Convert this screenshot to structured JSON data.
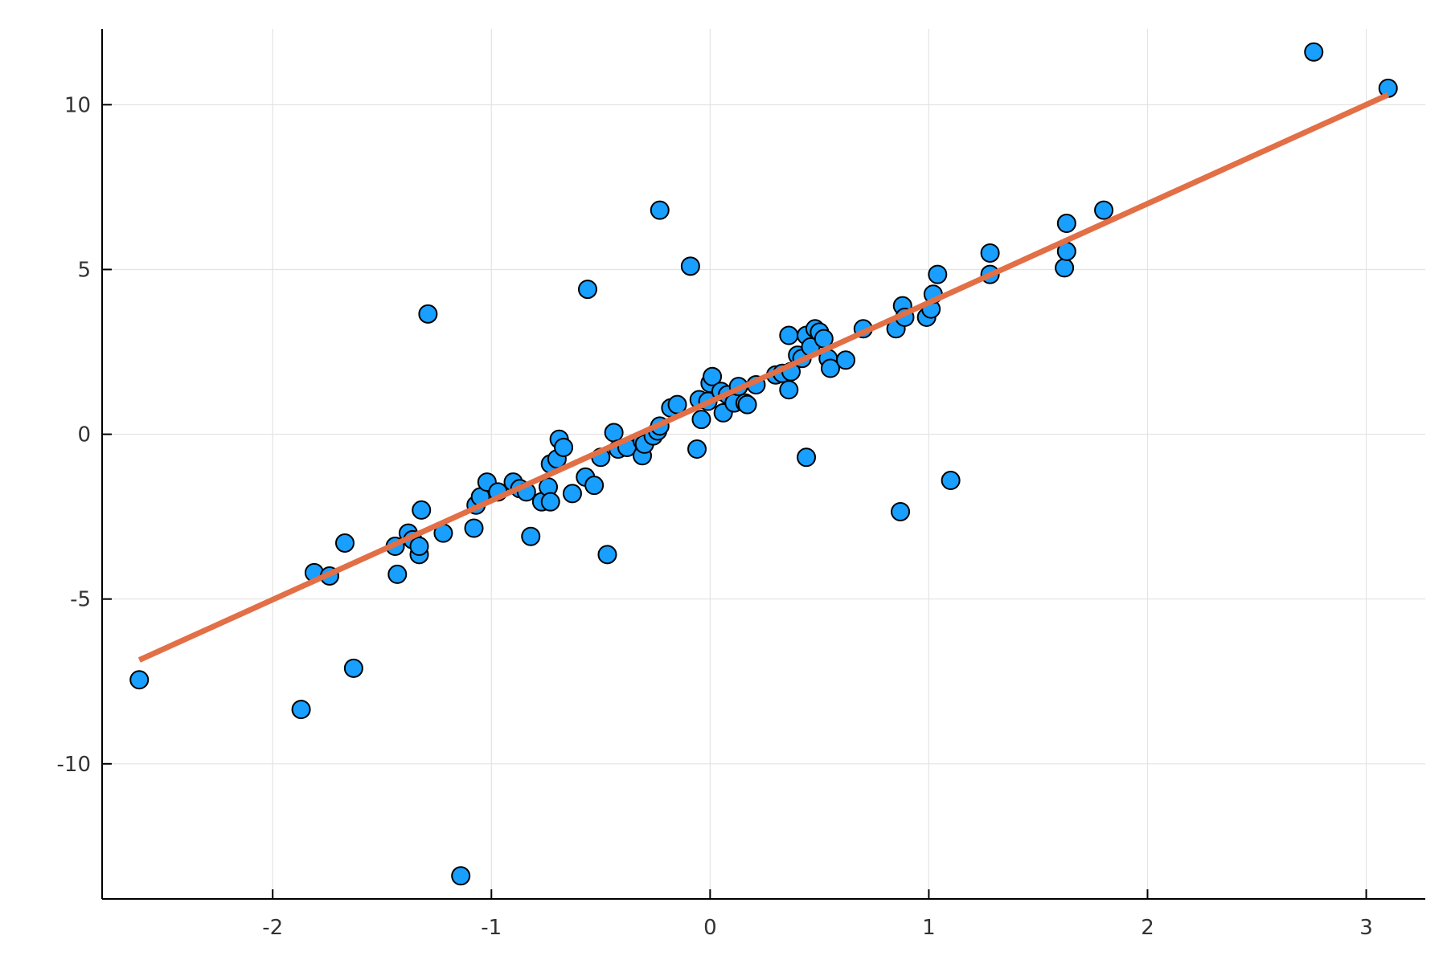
{
  "chart_data": {
    "type": "scatter",
    "title": "",
    "xlabel": "",
    "ylabel": "",
    "xlim": [
      -2.78,
      3.27
    ],
    "ylim": [
      -14.1,
      12.3
    ],
    "x_ticks": [
      -2,
      -1,
      0,
      1,
      2,
      3
    ],
    "x_tick_labels": [
      "-2",
      "-1",
      "0",
      "1",
      "2",
      "3"
    ],
    "y_ticks": [
      -10,
      -5,
      0,
      5,
      10
    ],
    "y_tick_labels": [
      "-10",
      "-5",
      "0",
      "5",
      "10"
    ],
    "grid": true,
    "legend": "none",
    "colors": {
      "points": "#189fff",
      "line": "#e26f46",
      "axis": "#000000",
      "grid": "#e3e3e3"
    },
    "series": [
      {
        "type": "scatter",
        "points": [
          [
            -2.61,
            -7.45
          ],
          [
            -1.87,
            -8.35
          ],
          [
            -1.81,
            -4.2
          ],
          [
            -1.74,
            -4.3
          ],
          [
            -1.67,
            -3.3
          ],
          [
            -1.63,
            -7.1
          ],
          [
            -1.44,
            -3.4
          ],
          [
            -1.43,
            -4.25
          ],
          [
            -1.38,
            -3.0
          ],
          [
            -1.36,
            -3.2
          ],
          [
            -1.33,
            -3.65
          ],
          [
            -1.33,
            -3.4
          ],
          [
            -1.32,
            -2.3
          ],
          [
            -1.29,
            3.65
          ],
          [
            -1.22,
            -3.0
          ],
          [
            -1.14,
            -13.4
          ],
          [
            -1.08,
            -2.85
          ],
          [
            -1.07,
            -2.15
          ],
          [
            -1.05,
            -1.9
          ],
          [
            -1.02,
            -1.45
          ],
          [
            -0.97,
            -1.75
          ],
          [
            -0.9,
            -1.45
          ],
          [
            -0.87,
            -1.65
          ],
          [
            -0.84,
            -1.75
          ],
          [
            -0.82,
            -3.1
          ],
          [
            -0.77,
            -2.05
          ],
          [
            -0.74,
            -1.6
          ],
          [
            -0.73,
            -2.05
          ],
          [
            -0.73,
            -0.9
          ],
          [
            -0.7,
            -0.75
          ],
          [
            -0.69,
            -0.15
          ],
          [
            -0.67,
            -0.4
          ],
          [
            -0.63,
            -1.8
          ],
          [
            -0.57,
            -1.3
          ],
          [
            -0.56,
            4.4
          ],
          [
            -0.53,
            -1.55
          ],
          [
            -0.5,
            -0.7
          ],
          [
            -0.47,
            -3.65
          ],
          [
            -0.44,
            0.05
          ],
          [
            -0.42,
            -0.45
          ],
          [
            -0.38,
            -0.4
          ],
          [
            -0.31,
            -0.2
          ],
          [
            -0.31,
            -0.65
          ],
          [
            -0.3,
            -0.3
          ],
          [
            -0.26,
            -0.05
          ],
          [
            -0.24,
            0.1
          ],
          [
            -0.23,
            0.25
          ],
          [
            -0.23,
            6.8
          ],
          [
            -0.18,
            0.8
          ],
          [
            -0.15,
            0.9
          ],
          [
            -0.09,
            5.1
          ],
          [
            -0.06,
            -0.45
          ],
          [
            -0.05,
            1.05
          ],
          [
            -0.04,
            0.45
          ],
          [
            -0.01,
            1.0
          ],
          [
            0.0,
            1.55
          ],
          [
            0.01,
            1.75
          ],
          [
            0.05,
            1.3
          ],
          [
            0.06,
            0.65
          ],
          [
            0.08,
            1.2
          ],
          [
            0.11,
            0.95
          ],
          [
            0.13,
            1.45
          ],
          [
            0.16,
            0.95
          ],
          [
            0.17,
            0.9
          ],
          [
            0.21,
            1.5
          ],
          [
            0.3,
            1.8
          ],
          [
            0.33,
            1.85
          ],
          [
            0.36,
            1.35
          ],
          [
            0.36,
            3.0
          ],
          [
            0.37,
            1.9
          ],
          [
            0.4,
            2.4
          ],
          [
            0.42,
            2.3
          ],
          [
            0.44,
            3.0
          ],
          [
            0.44,
            -0.7
          ],
          [
            0.46,
            2.65
          ],
          [
            0.48,
            3.2
          ],
          [
            0.5,
            3.1
          ],
          [
            0.52,
            2.9
          ],
          [
            0.54,
            2.3
          ],
          [
            0.55,
            2.0
          ],
          [
            0.62,
            2.25
          ],
          [
            0.7,
            3.2
          ],
          [
            0.85,
            3.2
          ],
          [
            0.87,
            -2.35
          ],
          [
            0.88,
            3.9
          ],
          [
            0.89,
            3.55
          ],
          [
            0.99,
            3.55
          ],
          [
            1.01,
            3.8
          ],
          [
            1.02,
            4.25
          ],
          [
            1.04,
            4.85
          ],
          [
            1.1,
            -1.4
          ],
          [
            1.28,
            4.85
          ],
          [
            1.28,
            5.5
          ],
          [
            1.62,
            5.05
          ],
          [
            1.63,
            6.4
          ],
          [
            1.63,
            5.55
          ],
          [
            1.8,
            6.8
          ],
          [
            2.76,
            11.6
          ],
          [
            3.1,
            10.5
          ]
        ]
      },
      {
        "type": "line",
        "x": [
          -2.61,
          3.1
        ],
        "values": [
          -6.85,
          10.3
        ]
      }
    ]
  }
}
